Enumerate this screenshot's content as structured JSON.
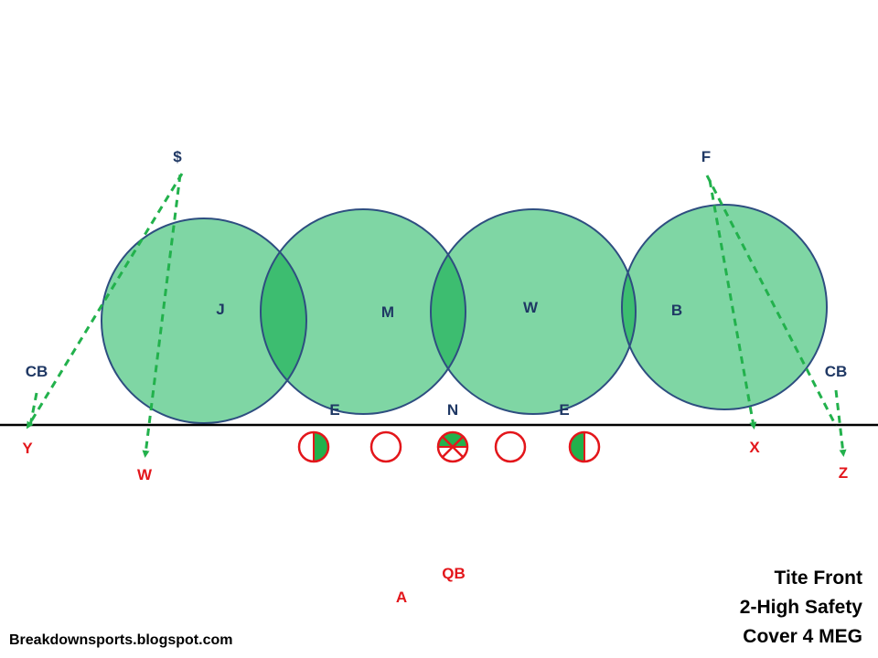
{
  "colors": {
    "defense_label": "#1f3864",
    "offense": "#e3161b",
    "zone_fill": "#7fd6a4",
    "zone_overlap": "#3dbd70",
    "zone_stroke": "#2e4e80",
    "route_line": "#22b14c",
    "line_of_scrimmage": "#000000"
  },
  "defense": {
    "zone_defenders": [
      "J",
      "M",
      "W",
      "B"
    ],
    "safeties": [
      "$",
      "F"
    ],
    "corners": [
      "CB",
      "CB"
    ],
    "line": [
      "E",
      "N",
      "E"
    ]
  },
  "offense": {
    "receivers": [
      "Y",
      "W",
      "X",
      "Z"
    ],
    "quarterback": "QB",
    "back": "A",
    "line_symbols": [
      "half-filled-circle",
      "open-circle",
      "center-x-circle",
      "open-circle",
      "half-filled-circle"
    ]
  },
  "caption": {
    "line1": "Tite Front",
    "line2": "2-High Safety",
    "line3": "Cover 4 MEG"
  },
  "source": "Breakdownsports.blogspot.com"
}
